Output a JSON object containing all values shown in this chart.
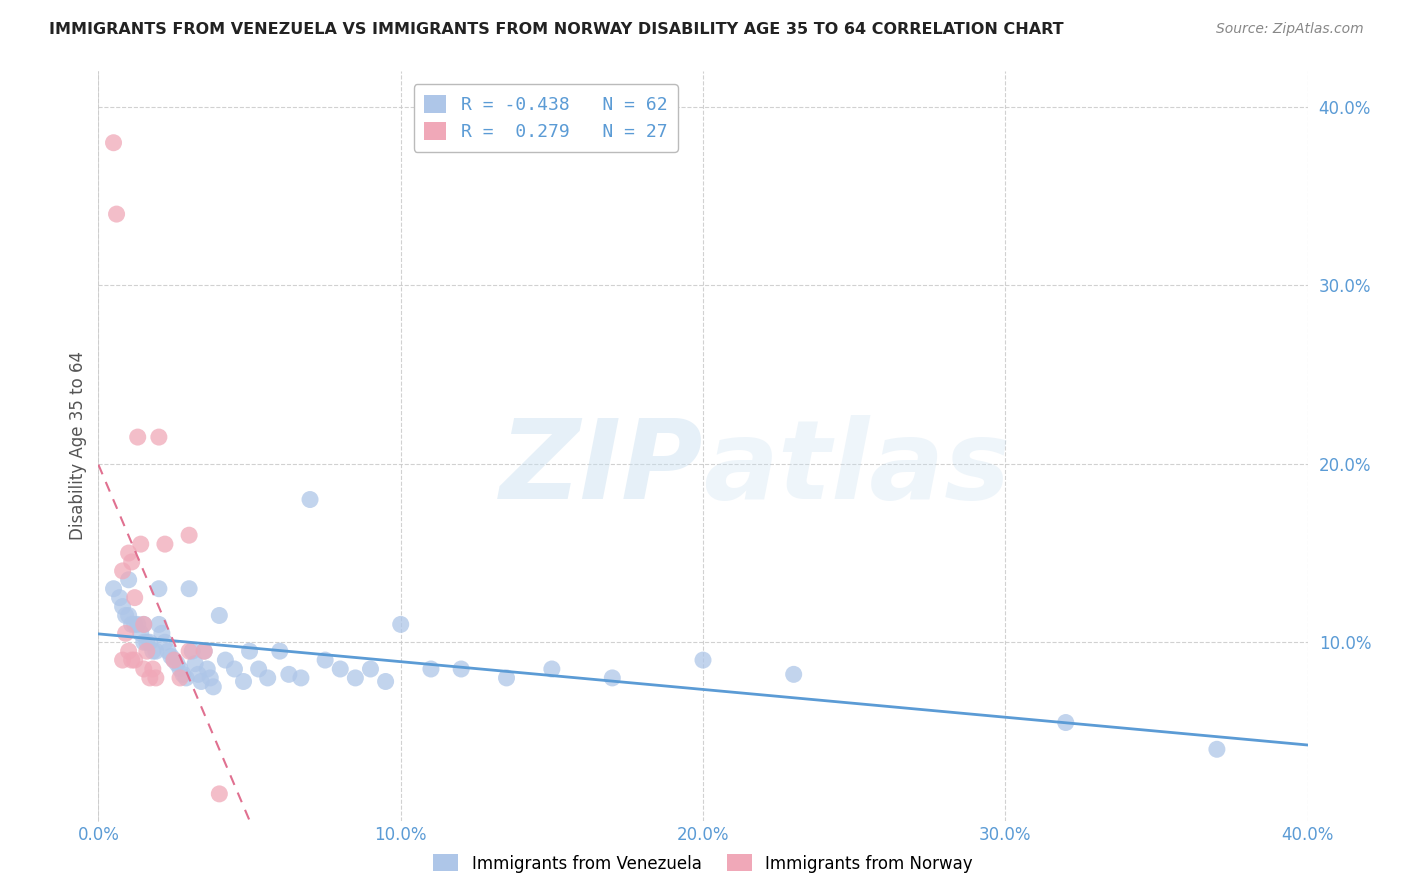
{
  "title": "IMMIGRANTS FROM VENEZUELA VS IMMIGRANTS FROM NORWAY DISABILITY AGE 35 TO 64 CORRELATION CHART",
  "source": "Source: ZipAtlas.com",
  "ylabel_label": "Disability Age 35 to 64",
  "x_min": 0.0,
  "x_max": 0.4,
  "y_min": 0.0,
  "y_max": 0.42,
  "x_ticks": [
    0.0,
    0.1,
    0.2,
    0.3,
    0.4
  ],
  "x_tick_labels": [
    "0.0%",
    "10.0%",
    "20.0%",
    "30.0%",
    "40.0%"
  ],
  "y_ticks": [
    0.1,
    0.2,
    0.3,
    0.4
  ],
  "y_tick_labels": [
    "10.0%",
    "20.0%",
    "30.0%",
    "40.0%"
  ],
  "blue_R": -0.438,
  "blue_N": 62,
  "pink_R": 0.279,
  "pink_N": 27,
  "blue_color": "#aec6e8",
  "pink_color": "#f0a8b8",
  "blue_line_color": "#5b9bd5",
  "pink_line_color": "#e07090",
  "legend_label_blue": "Immigrants from Venezuela",
  "legend_label_pink": "Immigrants from Norway",
  "blue_scatter_x": [
    0.005,
    0.007,
    0.008,
    0.009,
    0.01,
    0.01,
    0.011,
    0.012,
    0.013,
    0.014,
    0.015,
    0.015,
    0.016,
    0.017,
    0.018,
    0.019,
    0.02,
    0.02,
    0.021,
    0.022,
    0.023,
    0.024,
    0.025,
    0.026,
    0.027,
    0.028,
    0.029,
    0.03,
    0.031,
    0.032,
    0.033,
    0.034,
    0.035,
    0.036,
    0.037,
    0.038,
    0.04,
    0.042,
    0.045,
    0.048,
    0.05,
    0.053,
    0.056,
    0.06,
    0.063,
    0.067,
    0.07,
    0.075,
    0.08,
    0.085,
    0.09,
    0.095,
    0.1,
    0.11,
    0.12,
    0.135,
    0.15,
    0.17,
    0.2,
    0.23,
    0.32,
    0.37
  ],
  "blue_scatter_y": [
    0.13,
    0.125,
    0.12,
    0.115,
    0.135,
    0.115,
    0.11,
    0.11,
    0.11,
    0.105,
    0.11,
    0.1,
    0.1,
    0.1,
    0.095,
    0.095,
    0.13,
    0.11,
    0.105,
    0.1,
    0.095,
    0.092,
    0.09,
    0.088,
    0.085,
    0.082,
    0.08,
    0.13,
    0.095,
    0.088,
    0.082,
    0.078,
    0.095,
    0.085,
    0.08,
    0.075,
    0.115,
    0.09,
    0.085,
    0.078,
    0.095,
    0.085,
    0.08,
    0.095,
    0.082,
    0.08,
    0.18,
    0.09,
    0.085,
    0.08,
    0.085,
    0.078,
    0.11,
    0.085,
    0.085,
    0.08,
    0.085,
    0.08,
    0.09,
    0.082,
    0.055,
    0.04
  ],
  "pink_scatter_x": [
    0.005,
    0.006,
    0.008,
    0.008,
    0.009,
    0.01,
    0.01,
    0.011,
    0.011,
    0.012,
    0.012,
    0.013,
    0.014,
    0.015,
    0.015,
    0.016,
    0.017,
    0.018,
    0.019,
    0.02,
    0.022,
    0.025,
    0.027,
    0.03,
    0.03,
    0.035,
    0.04
  ],
  "pink_scatter_y": [
    0.38,
    0.34,
    0.14,
    0.09,
    0.105,
    0.15,
    0.095,
    0.145,
    0.09,
    0.125,
    0.09,
    0.215,
    0.155,
    0.11,
    0.085,
    0.095,
    0.08,
    0.085,
    0.08,
    0.215,
    0.155,
    0.09,
    0.08,
    0.16,
    0.095,
    0.095,
    0.015
  ]
}
